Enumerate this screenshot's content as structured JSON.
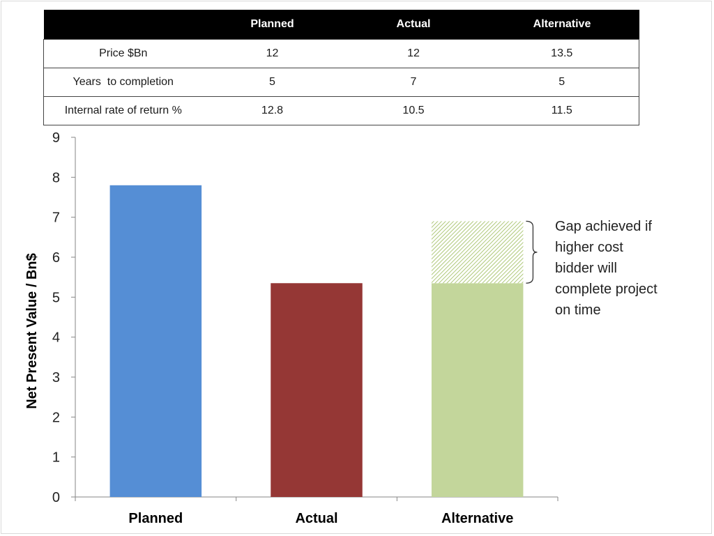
{
  "table": {
    "headers": [
      "",
      "Planned",
      "Actual",
      "Alternative"
    ],
    "rows": [
      [
        "Price $Bn",
        "12",
        "12",
        "13.5"
      ],
      [
        "Years  to completion",
        "5",
        "7",
        "5"
      ],
      [
        "Internal rate of return %",
        "12.8",
        "10.5",
        "11.5"
      ]
    ]
  },
  "chart_data": {
    "type": "bar",
    "title": "",
    "xlabel": "",
    "ylabel": "Net Present Value / Bn$",
    "ylim": [
      0,
      9
    ],
    "yticks": [
      0,
      1,
      2,
      3,
      4,
      5,
      6,
      7,
      8,
      9
    ],
    "grid": false,
    "categories": [
      "Planned",
      "Actual",
      "Alternative"
    ],
    "values": [
      7.8,
      5.35,
      5.35
    ],
    "colors": [
      "#558ed5",
      "#953735",
      "#c3d69b"
    ],
    "gap_segment": {
      "category": "Alternative",
      "from": 5.35,
      "to": 6.9,
      "color": "#9bbb59",
      "annotation": [
        "Gap achieved if",
        "higher cost",
        "bidder will",
        "complete project",
        "on time"
      ]
    }
  }
}
